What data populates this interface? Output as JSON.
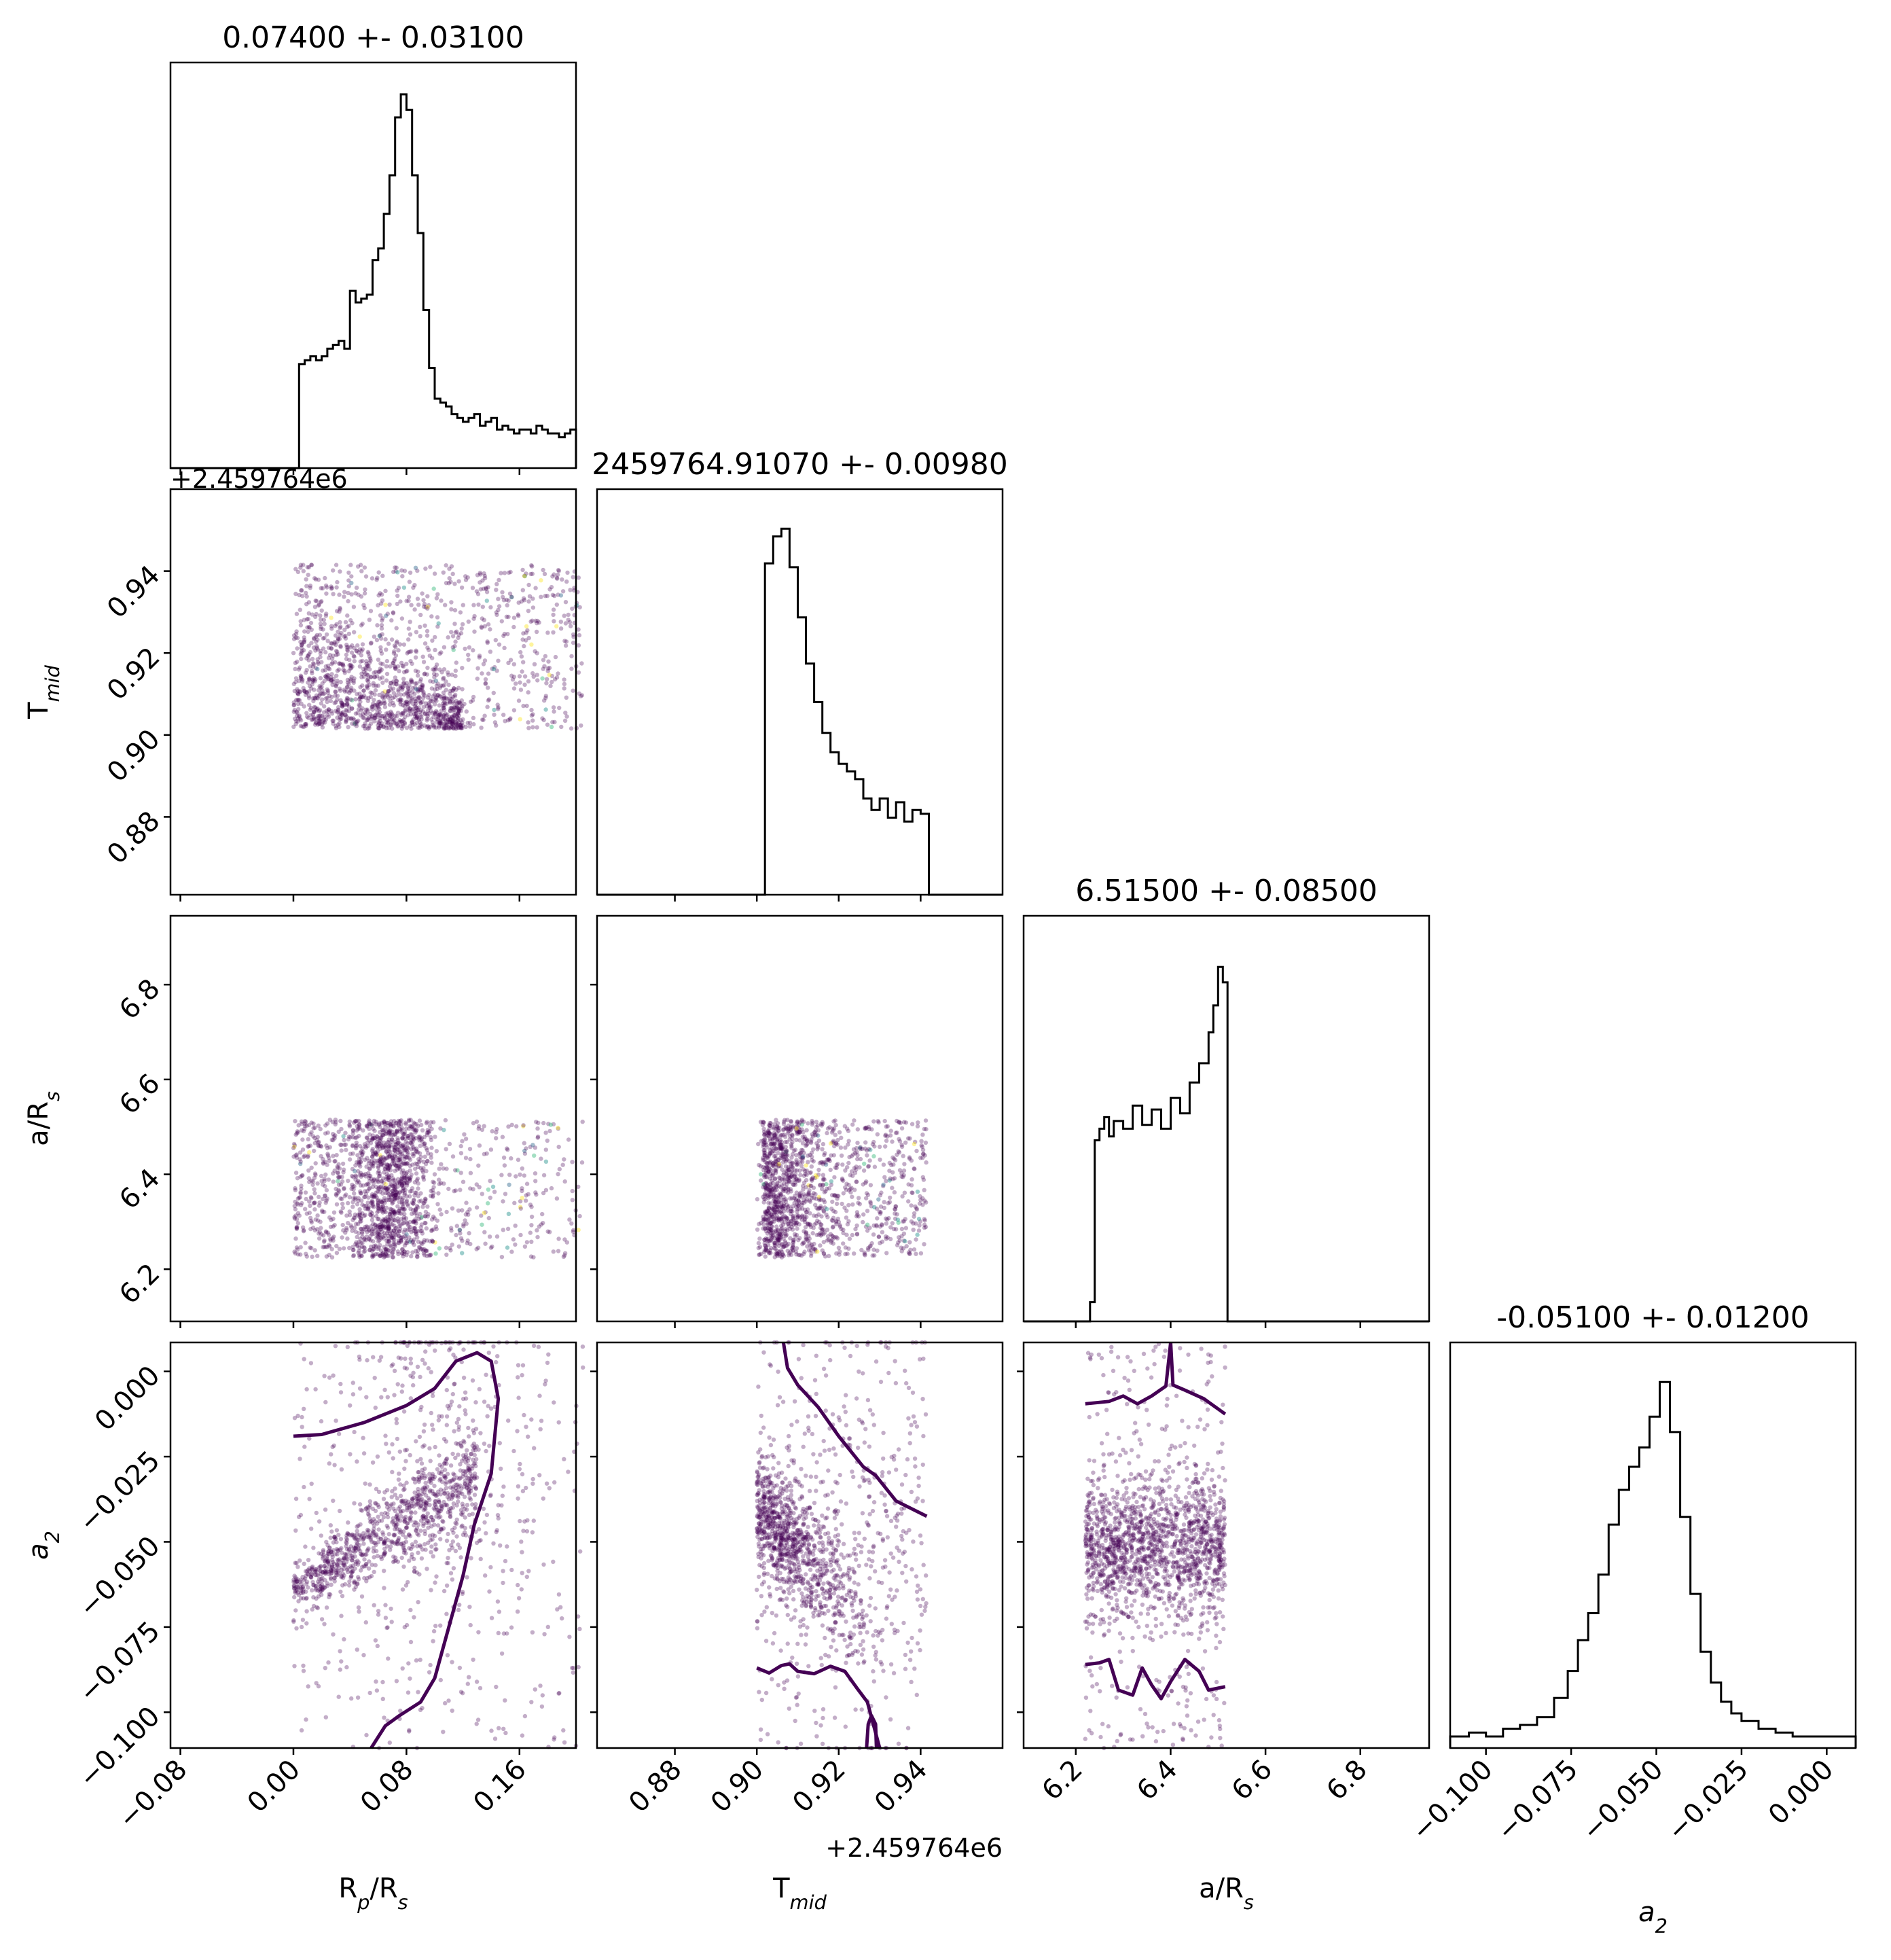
{
  "chart_data": {
    "type": "corner",
    "parameters": [
      {
        "key": "rprs",
        "label": "R<sub>p</sub>/R<sub>s</sub>",
        "range": [
          -0.087,
          0.2
        ],
        "ticks": [
          -0.08,
          0.0,
          0.08,
          0.16
        ],
        "tick_labels": [
          "−0.08",
          "0.00",
          "0.08",
          "0.16"
        ],
        "title": "0.07400 +- 0.03100",
        "offset_label": ""
      },
      {
        "key": "tmid",
        "label": "T<sub>mid</sub>",
        "range": [
          0.861,
          0.96
        ],
        "ticks": [
          0.88,
          0.9,
          0.92,
          0.94
        ],
        "tick_labels": [
          "0.88",
          "0.90",
          "0.92",
          "0.94"
        ],
        "title": "2459764.91070 +- 0.00980",
        "offset_label": "+2.459764e6"
      },
      {
        "key": "ars",
        "label": "a/R<sub>s</sub>",
        "range": [
          6.09,
          6.945
        ],
        "ticks": [
          6.2,
          6.4,
          6.6,
          6.8
        ],
        "tick_labels": [
          "6.2",
          "6.4",
          "6.6",
          "6.8"
        ],
        "title": "6.51500 +- 0.08500",
        "offset_label": ""
      },
      {
        "key": "a2",
        "label": "a<sub>2</sub>",
        "label_italic": true,
        "range": [
          -0.1105,
          0.0085
        ],
        "ticks": [
          -0.1,
          -0.075,
          -0.05,
          -0.025,
          0.0
        ],
        "tick_labels": [
          "−0.100",
          "−0.075",
          "−0.050",
          "−0.025",
          "0.000"
        ],
        "title": "-0.05100 +- 0.01200",
        "offset_label": ""
      }
    ],
    "histograms": [
      {
        "param": "rprs",
        "edges_start": -0.087,
        "edges_end": 0.2,
        "counts": [
          0,
          0,
          0,
          0,
          0,
          0,
          0,
          0,
          0,
          0,
          0,
          0,
          0,
          0,
          0,
          0,
          0,
          0,
          0,
          0,
          0,
          0,
          0,
          0,
          0,
          0,
          0,
          0,
          0,
          0,
          0,
          0,
          0,
          0,
          0,
          0,
          0,
          0,
          0,
          0,
          0,
          0,
          0,
          0,
          0,
          0,
          0,
          0,
          0,
          0,
          0,
          0,
          0,
          0,
          0,
          0,
          0,
          0,
          0,
          0,
          0,
          0,
          0,
          0,
          0,
          0,
          0,
          0,
          0,
          0,
          0,
          0,
          0,
          0,
          0,
          0,
          0,
          0
        ]
      },
      {
        "param": "tmid",
        "edges_start": 0.861,
        "edges_end": 0.96,
        "counts": []
      },
      {
        "param": "ars",
        "edges_start": 6.09,
        "edges_end": 6.945,
        "counts": []
      },
      {
        "param": "a2",
        "edges_start": -0.1105,
        "edges_end": 0.0085,
        "counts": []
      }
    ],
    "hist_profiles": {
      "rprs": {
        "x": [
          0.0,
          0.004,
          0.008,
          0.012,
          0.016,
          0.02,
          0.024,
          0.028,
          0.032,
          0.036,
          0.04,
          0.044,
          0.048,
          0.052,
          0.056,
          0.06,
          0.064,
          0.068,
          0.072,
          0.076,
          0.08,
          0.084,
          0.088,
          0.092,
          0.096,
          0.1,
          0.104,
          0.108,
          0.112,
          0.116,
          0.12,
          0.124,
          0.128,
          0.132,
          0.136,
          0.14,
          0.144,
          0.148,
          0.152,
          0.156,
          0.16,
          0.164,
          0.168,
          0.172,
          0.176,
          0.18,
          0.184,
          0.188,
          0.192,
          0.196,
          0.2
        ],
        "y": [
          0.0,
          0.27,
          0.28,
          0.29,
          0.28,
          0.29,
          0.31,
          0.32,
          0.33,
          0.31,
          0.46,
          0.43,
          0.44,
          0.45,
          0.54,
          0.57,
          0.66,
          0.76,
          0.91,
          0.97,
          0.93,
          0.76,
          0.61,
          0.41,
          0.26,
          0.18,
          0.17,
          0.16,
          0.14,
          0.13,
          0.12,
          0.13,
          0.14,
          0.11,
          0.12,
          0.13,
          0.1,
          0.11,
          0.1,
          0.09,
          0.1,
          0.1,
          0.09,
          0.11,
          0.1,
          0.09,
          0.09,
          0.08,
          0.09,
          0.1,
          0.0
        ],
        "ymax": 1.0
      },
      "tmid": {
        "x": [
          0.9,
          0.902,
          0.904,
          0.906,
          0.908,
          0.91,
          0.912,
          0.914,
          0.916,
          0.918,
          0.92,
          0.922,
          0.924,
          0.926,
          0.928,
          0.93,
          0.932,
          0.934,
          0.936,
          0.938,
          0.94,
          0.942
        ],
        "y": [
          0.0,
          0.86,
          0.93,
          0.95,
          0.85,
          0.72,
          0.6,
          0.5,
          0.42,
          0.37,
          0.34,
          0.32,
          0.3,
          0.25,
          0.22,
          0.25,
          0.2,
          0.24,
          0.19,
          0.22,
          0.21,
          0.0
        ],
        "ymax": 1.0
      },
      "ars": {
        "x": [
          6.22,
          6.23,
          6.24,
          6.25,
          6.26,
          6.27,
          6.28,
          6.3,
          6.32,
          6.34,
          6.36,
          6.38,
          6.4,
          6.42,
          6.44,
          6.46,
          6.48,
          6.49,
          6.5,
          6.51,
          6.52
        ],
        "y": [
          0.0,
          0.05,
          0.47,
          0.5,
          0.53,
          0.48,
          0.52,
          0.5,
          0.56,
          0.51,
          0.55,
          0.5,
          0.58,
          0.54,
          0.62,
          0.67,
          0.75,
          0.82,
          0.92,
          0.88,
          0.0
        ],
        "ymax": 1.0
      },
      "a2": {
        "x": [
          -0.1105,
          -0.105,
          -0.1,
          -0.095,
          -0.09,
          -0.085,
          -0.08,
          -0.076,
          -0.073,
          -0.07,
          -0.067,
          -0.064,
          -0.061,
          -0.058,
          -0.055,
          -0.052,
          -0.049,
          -0.046,
          -0.043,
          -0.04,
          -0.037,
          -0.034,
          -0.031,
          -0.028,
          -0.025,
          -0.02,
          -0.015,
          -0.01,
          -0.005,
          0.0,
          0.0085
        ],
        "y": [
          0.03,
          0.04,
          0.03,
          0.05,
          0.06,
          0.08,
          0.13,
          0.2,
          0.28,
          0.35,
          0.45,
          0.58,
          0.67,
          0.73,
          0.78,
          0.86,
          0.95,
          0.82,
          0.6,
          0.4,
          0.25,
          0.17,
          0.12,
          0.09,
          0.07,
          0.05,
          0.04,
          0.03,
          0.03,
          0.03,
          0.02
        ],
        "ymax": 1.0
      }
    },
    "scatter_regions": {
      "rprs_tmid": {
        "x_range": [
          0.0,
          0.205
        ],
        "y_range": [
          0.9015,
          0.9415
        ]
      },
      "rprs_ars": {
        "x_range": [
          0.0,
          0.205
        ],
        "y_range": [
          6.225,
          6.515
        ]
      },
      "tmid_ars": {
        "x_range": [
          0.9,
          0.9415
        ],
        "y_range": [
          6.225,
          6.515
        ]
      },
      "rprs_a2": {
        "x_range": [
          0.0,
          0.205
        ],
        "y_range": [
          -0.1105,
          0.0085
        ]
      },
      "tmid_a2": {
        "x_range": [
          0.9,
          0.9415
        ],
        "y_range": [
          -0.1105,
          0.0085
        ]
      },
      "ars_a2": {
        "x_range": [
          6.22,
          6.515
        ],
        "y_range": [
          -0.1105,
          0.0085
        ]
      }
    },
    "contours": {
      "rprs_a2": [
        [
          0.0,
          -0.019
        ],
        [
          0.02,
          -0.0185
        ],
        [
          0.05,
          -0.015
        ],
        [
          0.08,
          -0.01
        ],
        [
          0.1,
          -0.005
        ],
        [
          0.115,
          0.003
        ],
        [
          0.13,
          0.0055
        ],
        [
          0.14,
          0.003
        ],
        [
          0.145,
          -0.008
        ],
        [
          0.14,
          -0.03
        ],
        [
          0.128,
          -0.045
        ],
        [
          0.12,
          -0.06
        ],
        [
          0.11,
          -0.075
        ],
        [
          0.1,
          -0.09
        ],
        [
          0.09,
          -0.097
        ],
        [
          0.075,
          -0.101
        ],
        [
          0.065,
          -0.104
        ],
        [
          0.055,
          -0.1105
        ]
      ],
      "tmid_a2_upper": [
        [
          0.9065,
          0.0085
        ],
        [
          0.9075,
          0.001
        ],
        [
          0.91,
          -0.004
        ],
        [
          0.915,
          -0.0105
        ],
        [
          0.92,
          -0.019
        ],
        [
          0.926,
          -0.028
        ],
        [
          0.929,
          -0.0305
        ],
        [
          0.934,
          -0.038
        ],
        [
          0.9415,
          -0.0425
        ]
      ],
      "tmid_a2_lower": [
        [
          0.9,
          -0.087
        ],
        [
          0.903,
          -0.0885
        ],
        [
          0.906,
          -0.0863
        ],
        [
          0.908,
          -0.0858
        ],
        [
          0.91,
          -0.088
        ],
        [
          0.914,
          -0.0887
        ],
        [
          0.918,
          -0.0865
        ],
        [
          0.9215,
          -0.088
        ],
        [
          0.9245,
          -0.093
        ],
        [
          0.927,
          -0.097
        ],
        [
          0.93,
          -0.1105
        ]
      ],
      "tmid_a2_loop": [
        [
          0.9268,
          -0.1105
        ],
        [
          0.9272,
          -0.1035
        ],
        [
          0.928,
          -0.101
        ],
        [
          0.929,
          -0.1035
        ],
        [
          0.9292,
          -0.1105
        ]
      ],
      "ars_a2_upper": [
        [
          6.22,
          -0.0095
        ],
        [
          6.27,
          -0.0088
        ],
        [
          6.3,
          -0.0072
        ],
        [
          6.33,
          -0.0095
        ],
        [
          6.36,
          -0.0072
        ],
        [
          6.39,
          -0.0043
        ],
        [
          6.4,
          0.0085
        ]
      ],
      "ars_a2_upper_r": [
        [
          6.4,
          0.0085
        ],
        [
          6.405,
          -0.004
        ],
        [
          6.43,
          -0.0055
        ],
        [
          6.47,
          -0.008
        ],
        [
          6.515,
          -0.0125
        ]
      ],
      "ars_a2_lower": [
        [
          6.22,
          -0.086
        ],
        [
          6.25,
          -0.0855
        ],
        [
          6.27,
          -0.0845
        ],
        [
          6.29,
          -0.0935
        ],
        [
          6.32,
          -0.095
        ],
        [
          6.34,
          -0.087
        ],
        [
          6.36,
          -0.092
        ],
        [
          6.38,
          -0.096
        ],
        [
          6.4,
          -0.091
        ],
        [
          6.43,
          -0.0845
        ],
        [
          6.46,
          -0.088
        ],
        [
          6.48,
          -0.0935
        ],
        [
          6.515,
          -0.0925
        ]
      ]
    },
    "colors": {
      "contour": "#440154",
      "points": "#440154",
      "hist": "#000000"
    }
  }
}
